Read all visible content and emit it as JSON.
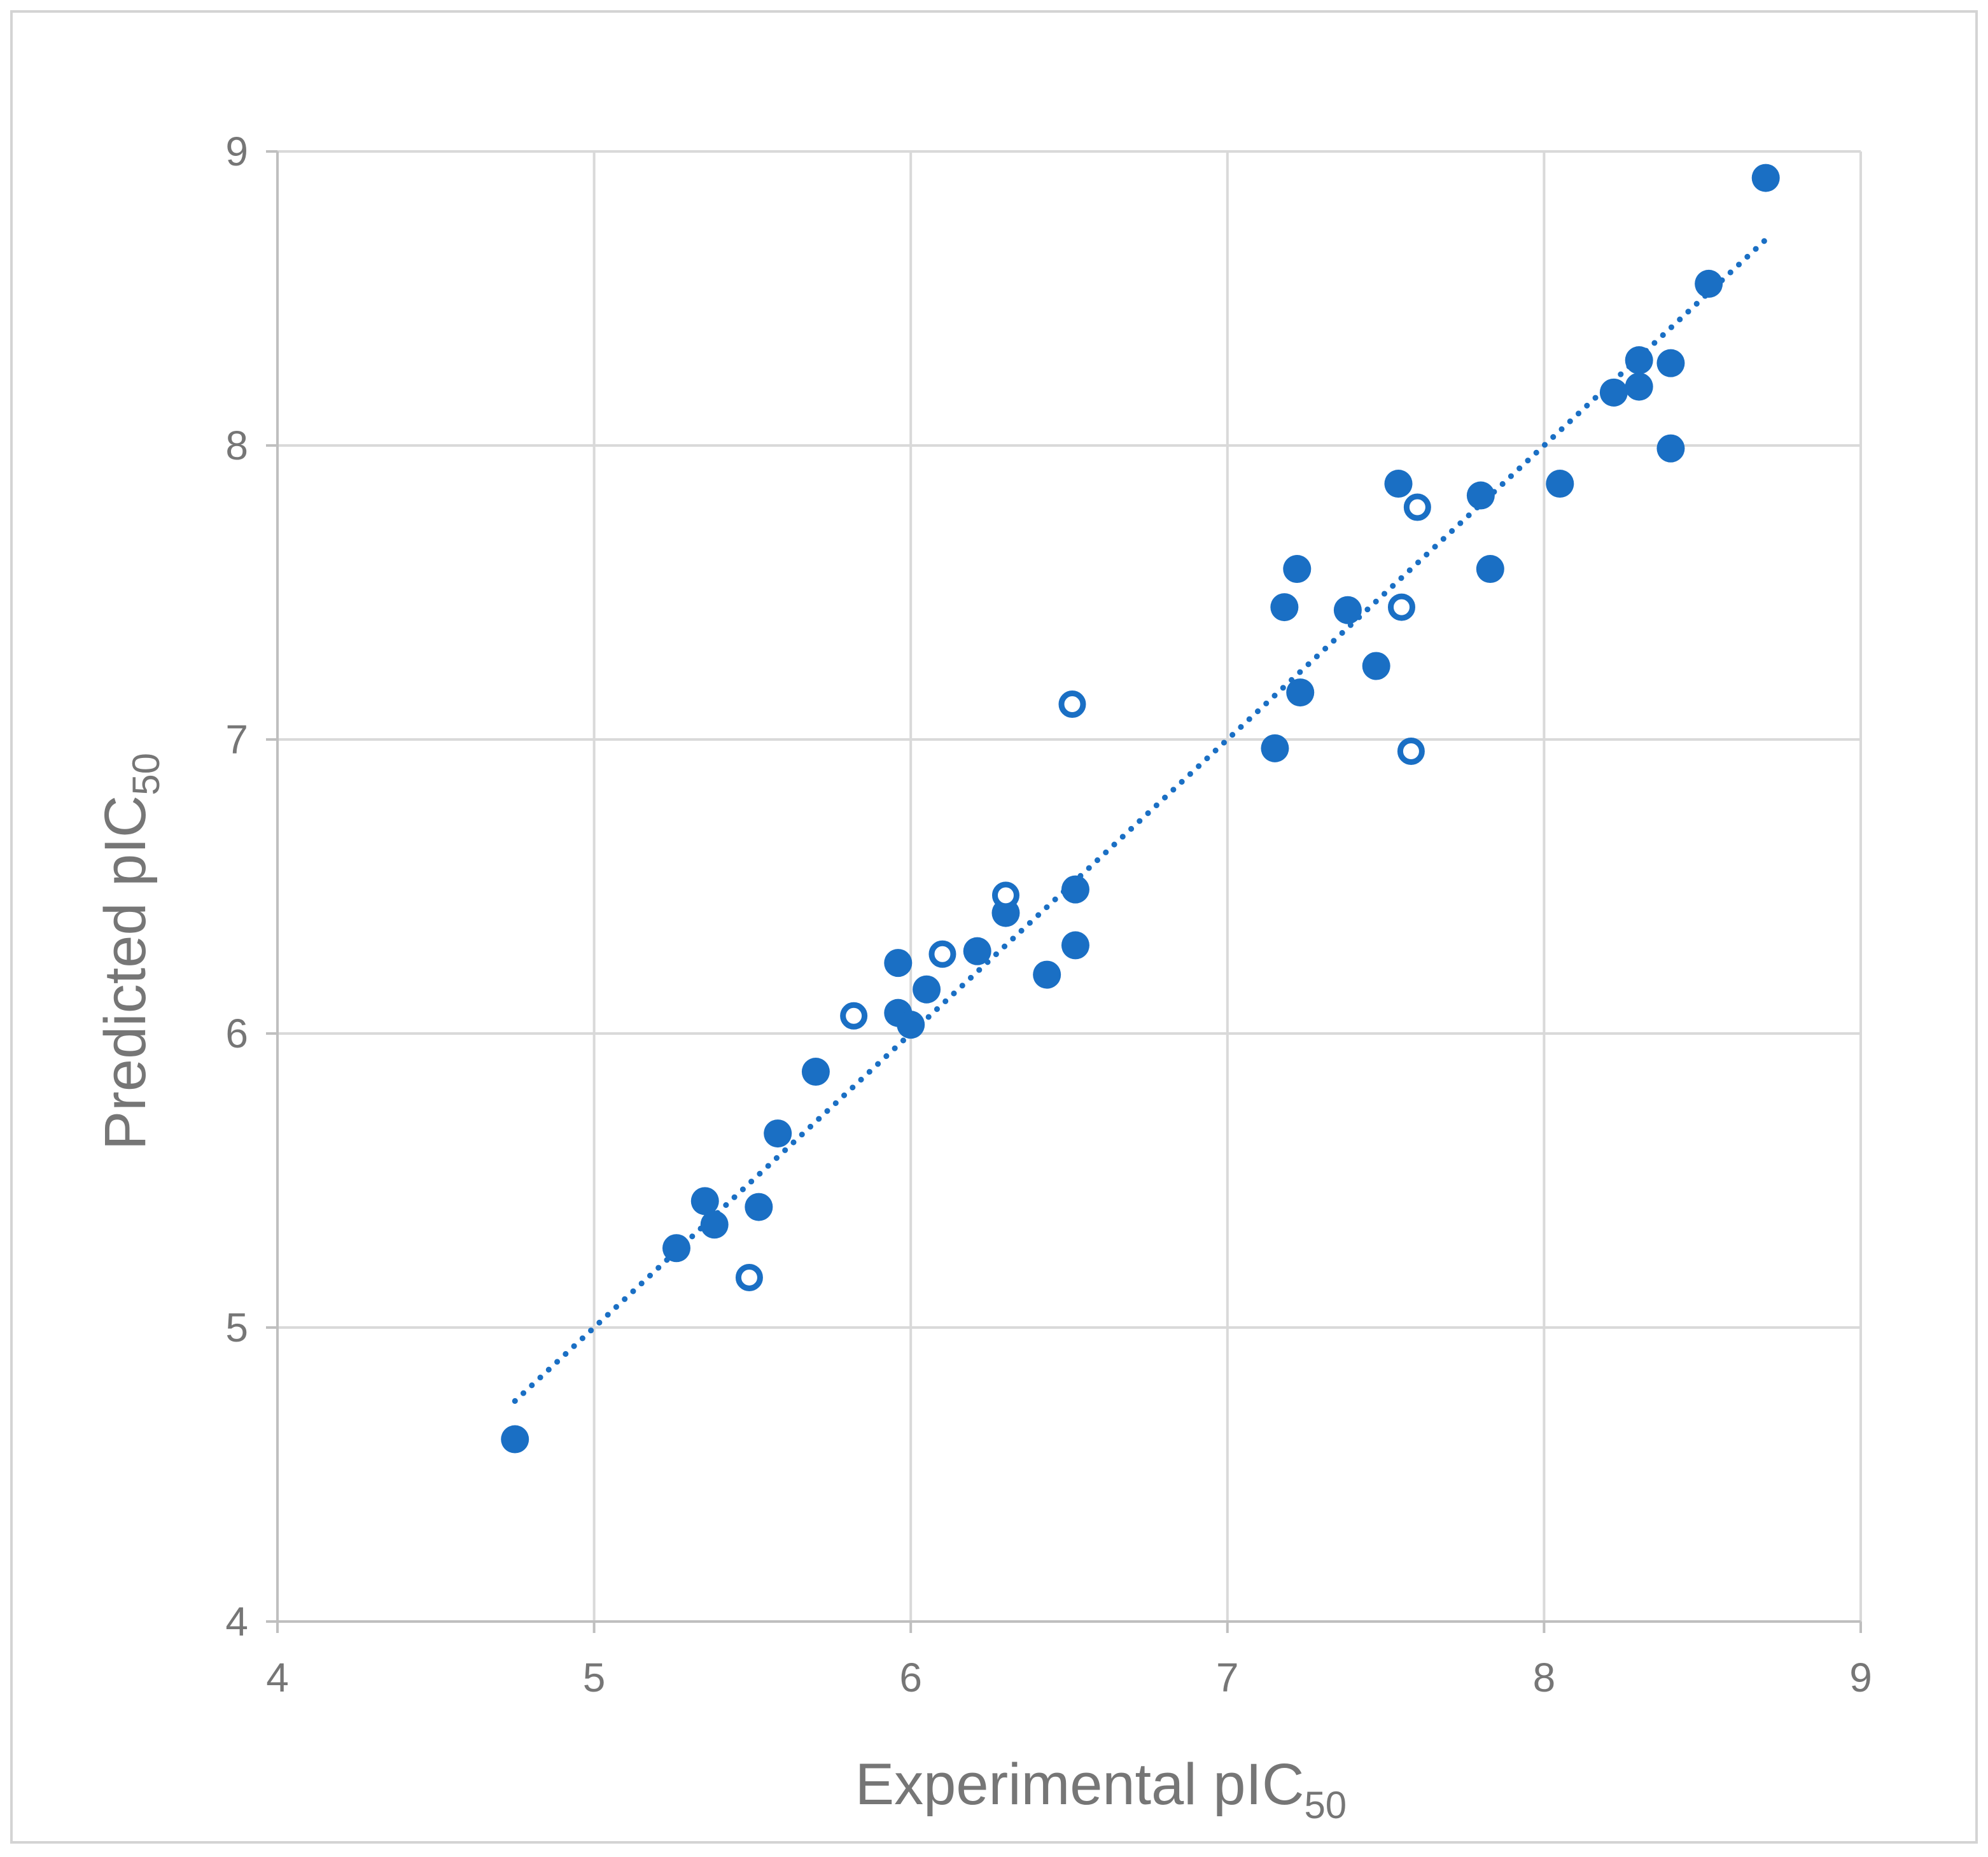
{
  "chart_data": {
    "type": "scatter",
    "title": "",
    "xlabel": "Experimental pIC",
    "xlabel_subscript": "50",
    "ylabel": "Predicted pIC",
    "ylabel_subscript": "50",
    "xlim": [
      4,
      9
    ],
    "ylim": [
      4,
      9
    ],
    "xticks": [
      "4",
      "5",
      "6",
      "7",
      "8",
      "9"
    ],
    "yticks": [
      "4",
      "5",
      "6",
      "7",
      "8",
      "9"
    ],
    "grid": true,
    "legend": "none",
    "series": [
      {
        "marker": "filled-circle",
        "color": "#1a6fc4",
        "points": [
          [
            4.75,
            4.62
          ],
          [
            5.26,
            5.27
          ],
          [
            5.35,
            5.43
          ],
          [
            5.38,
            5.35
          ],
          [
            5.52,
            5.41
          ],
          [
            5.58,
            5.66
          ],
          [
            5.7,
            5.87
          ],
          [
            5.96,
            6.24
          ],
          [
            5.96,
            6.07
          ],
          [
            6.0,
            6.03
          ],
          [
            6.05,
            6.15
          ],
          [
            6.21,
            6.28
          ],
          [
            6.3,
            6.41
          ],
          [
            6.43,
            6.2
          ],
          [
            6.52,
            6.49
          ],
          [
            6.52,
            6.3
          ],
          [
            7.15,
            6.97
          ],
          [
            7.18,
            7.45
          ],
          [
            7.22,
            7.58
          ],
          [
            7.23,
            7.16
          ],
          [
            7.38,
            7.44
          ],
          [
            7.47,
            7.25
          ],
          [
            7.54,
            7.87
          ],
          [
            7.8,
            7.83
          ],
          [
            7.83,
            7.58
          ],
          [
            8.05,
            7.87
          ],
          [
            8.22,
            8.18
          ],
          [
            8.3,
            8.29
          ],
          [
            8.3,
            8.2
          ],
          [
            8.4,
            8.28
          ],
          [
            8.4,
            7.99
          ],
          [
            8.52,
            8.55
          ],
          [
            8.7,
            8.91
          ]
        ]
      },
      {
        "marker": "open-circle",
        "color": "#1a6fc4",
        "points": [
          [
            5.49,
            5.17
          ],
          [
            5.82,
            6.06
          ],
          [
            6.1,
            6.27
          ],
          [
            6.3,
            6.47
          ],
          [
            6.51,
            7.12
          ],
          [
            7.55,
            7.45
          ],
          [
            7.58,
            6.96
          ],
          [
            7.6,
            7.79
          ]
        ]
      }
    ],
    "trendline": {
      "style": "dotted",
      "color": "#1a6fc4",
      "from": [
        4.75,
        4.75
      ],
      "to": [
        8.7,
        8.7
      ]
    }
  }
}
